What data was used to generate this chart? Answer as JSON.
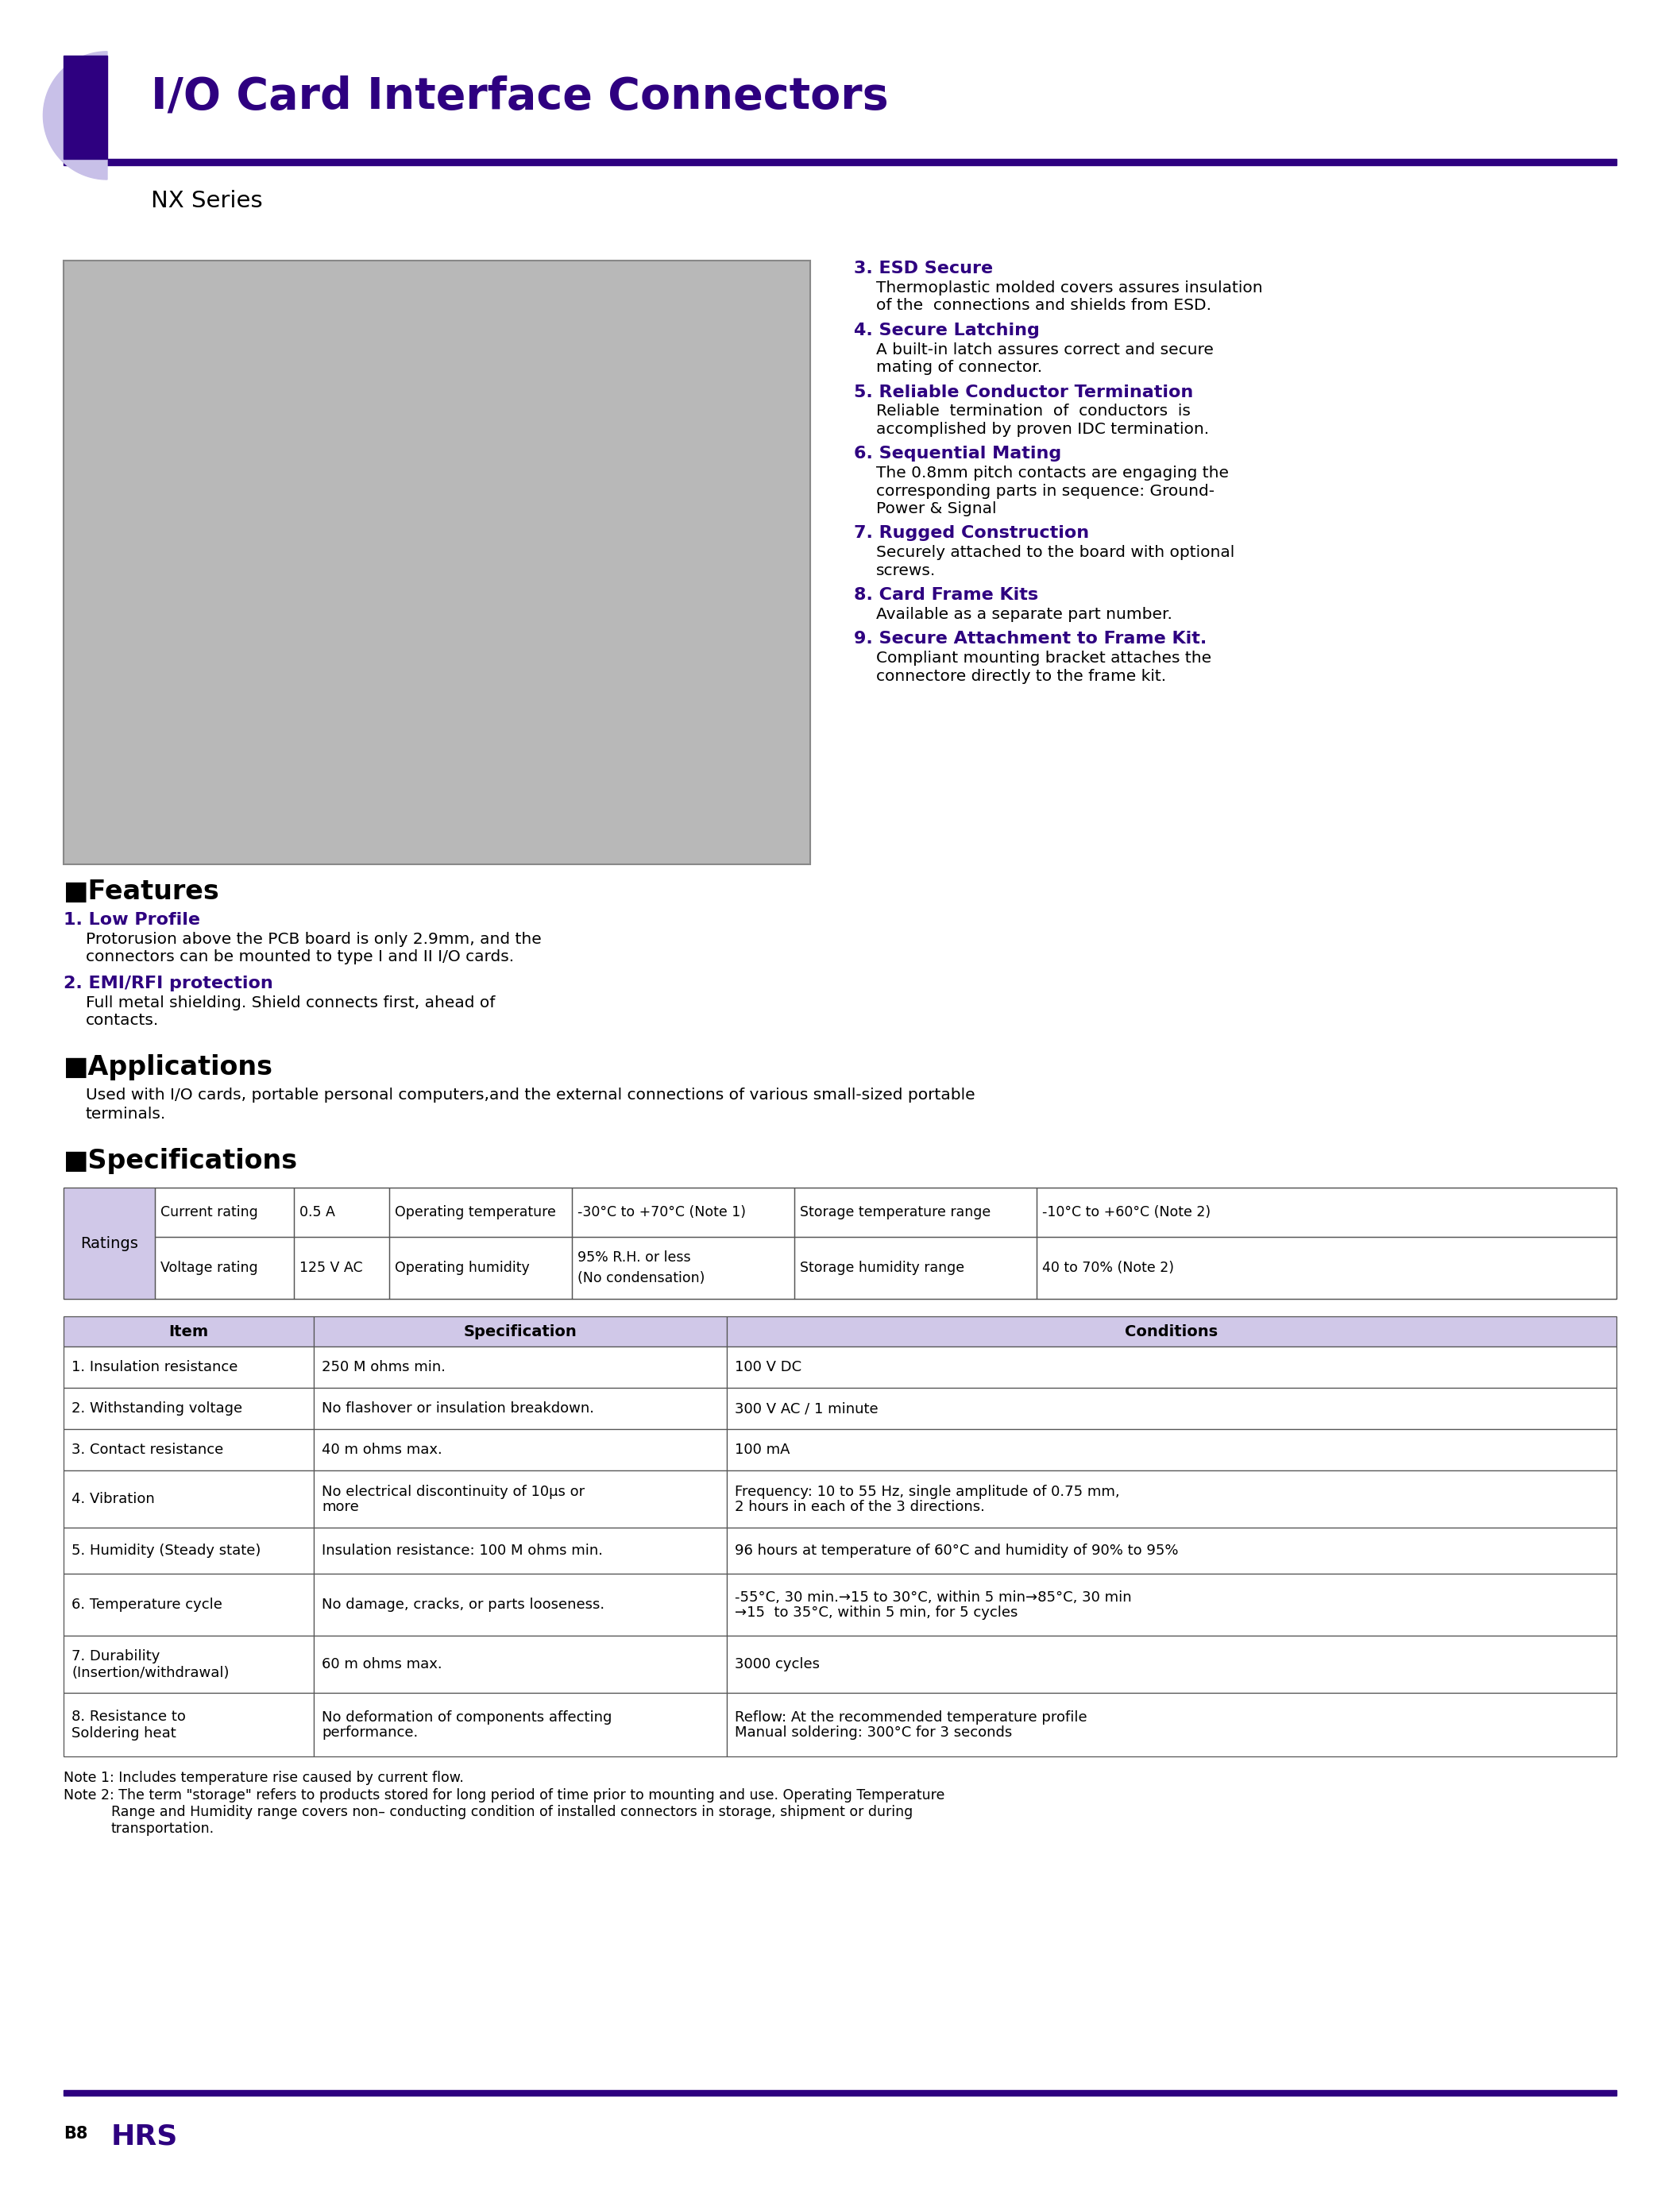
{
  "title": "I/O Card Interface Connectors",
  "subtitle": "NX Series",
  "purple_dark": "#2E0080",
  "purple_light": "#C8C0E8",
  "lavender_cell": "#D0C8E8",
  "features": [
    {
      "num": "1.",
      "title": "Low Profile",
      "text": "Protorusion above the PCB board is only 2.9mm, and the\nconnectors can be mounted to type I and II I/O cards."
    },
    {
      "num": "2.",
      "title": "EMI/RFI protection",
      "text": "Full metal shielding. Shield connects first, ahead of\ncontacts."
    },
    {
      "num": "3.",
      "title": "ESD Secure",
      "text": "Thermoplastic molded covers assures insulation\nof the  connections and shields from ESD."
    },
    {
      "num": "4.",
      "title": "Secure Latching",
      "text": "A built-in latch assures correct and secure\nmating of connector."
    },
    {
      "num": "5.",
      "title": "Reliable Conductor Termination",
      "text": "Reliable  termination  of  conductors  is\naccomplished by proven IDC termination."
    },
    {
      "num": "6.",
      "title": "Sequential Mating",
      "text": "The 0.8mm pitch contacts are engaging the\ncorresponding parts in sequence: Ground-\nPower & Signal"
    },
    {
      "num": "7.",
      "title": "Rugged Construction",
      "text": "Securely attached to the board with optional\nscrews."
    },
    {
      "num": "8.",
      "title": "Card Frame Kits",
      "text": "Available as a separate part number."
    },
    {
      "num": "9.",
      "title": "Secure Attachment to Frame Kit.",
      "text": "Compliant mounting bracket attaches the\nconnectore directly to the frame kit."
    }
  ],
  "applications_text": "Used with I/O cards, portable personal computers,and the external connections of various small-sized portable\nterminals.",
  "spec_headers": [
    "Item",
    "Specification",
    "Conditions"
  ],
  "spec_rows": [
    [
      "1. Insulation resistance",
      "250 M ohms min.",
      "100 V DC"
    ],
    [
      "2. Withstanding voltage",
      "No flashover or insulation breakdown.",
      "300 V AC / 1 minute"
    ],
    [
      "3. Contact resistance",
      "40 m ohms max.",
      "100 mA"
    ],
    [
      "4. Vibration",
      "No electrical discontinuity of 10μs or\nmore",
      "Frequency: 10 to 55 Hz, single amplitude of 0.75 mm,\n2 hours in each of the 3 directions."
    ],
    [
      "5. Humidity (Steady state)",
      "Insulation resistance: 100 M ohms min.",
      "96 hours at temperature of 60°C and humidity of 90% to 95%"
    ],
    [
      "6. Temperature cycle",
      "No damage, cracks, or parts looseness.",
      "-55°C, 30 min.→15 to 30°C, within 5 min→85°C, 30 min\n→15  to 35°C, within 5 min, for 5 cycles"
    ],
    [
      "7. Durability\n(Insertion/withdrawal)",
      "60 m ohms max.",
      "3000 cycles"
    ],
    [
      "8. Resistance to\nSoldering heat",
      "No deformation of components affecting\nperformance.",
      "Reflow: At the recommended temperature profile\nManual soldering: 300°C for 3 seconds"
    ]
  ],
  "notes": [
    "Note 1: Includes temperature rise caused by current flow.",
    "Note 2: The term \"storage\" refers to products stored for long period of time prior to mounting and use. Operating Temperature\n\t     Range and Humidity range covers non– conducting condition of installed connectors in storage, shipment or during\n\t     transportation."
  ],
  "page_label": "B8",
  "bg_color": "#FFFFFF",
  "border_color": "#555555"
}
